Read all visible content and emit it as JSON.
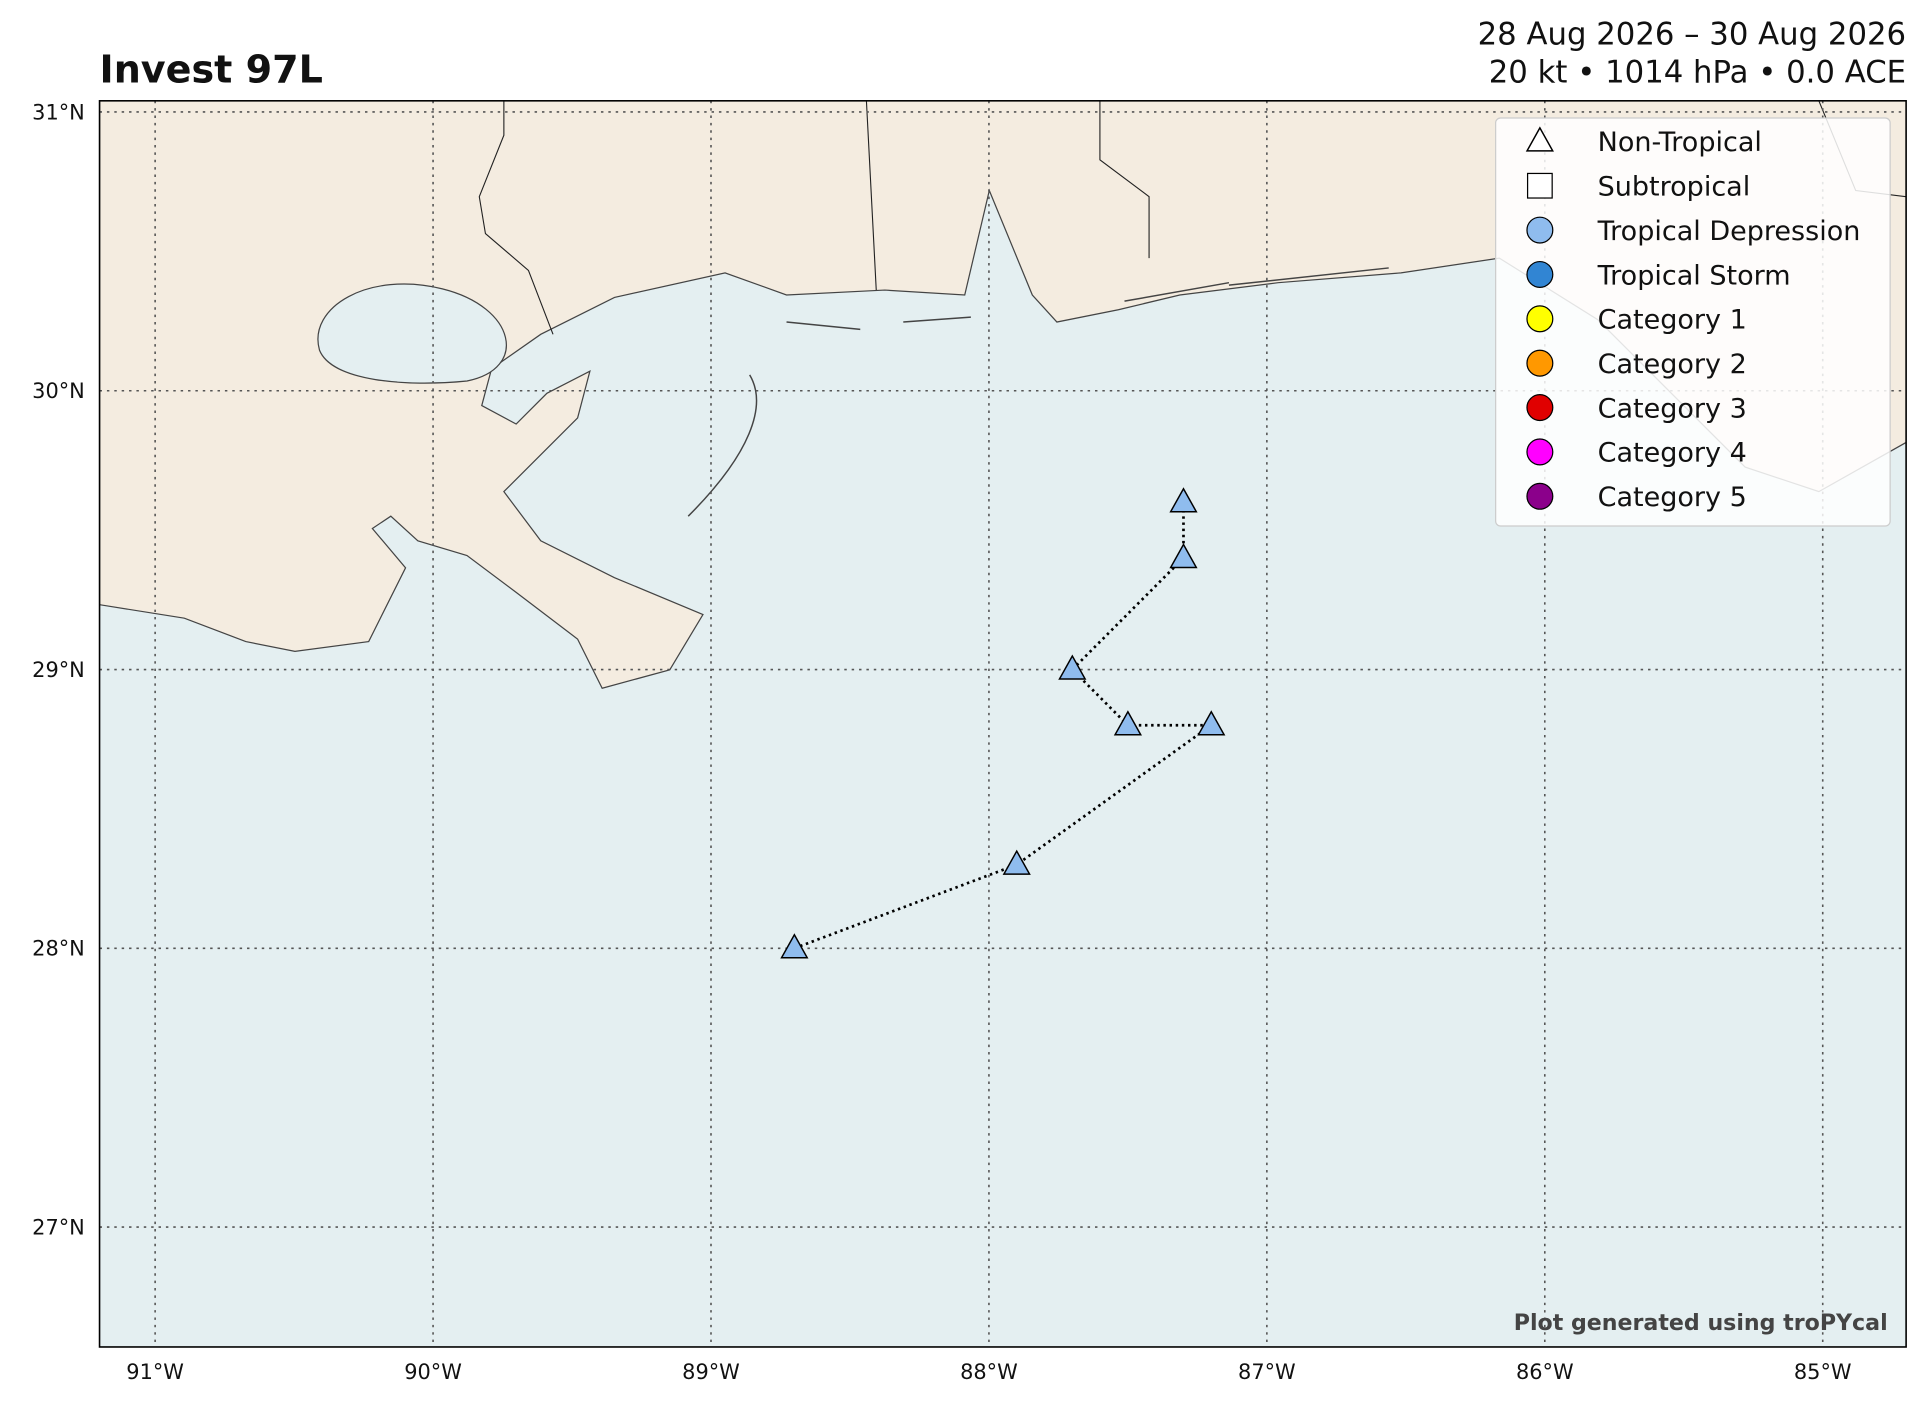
{
  "chart_data": {
    "type": "track",
    "title": "Invest 97L",
    "subtitle": [
      "28 Aug 2026 – 30 Aug 2026",
      "20 kt • 1014 hPa • 0.0 ACE"
    ],
    "credit": "Plot generated using troPYcal",
    "xlim": [
      -91.2,
      -84.7
    ],
    "ylim": [
      26.57,
      31.04
    ],
    "xticks": [
      {
        "value": -91,
        "label": "91°W"
      },
      {
        "value": -90,
        "label": "90°W"
      },
      {
        "value": -89,
        "label": "89°W"
      },
      {
        "value": -88,
        "label": "88°W"
      },
      {
        "value": -87,
        "label": "87°W"
      },
      {
        "value": -86,
        "label": "86°W"
      },
      {
        "value": -85,
        "label": "85°W"
      }
    ],
    "yticks": [
      {
        "value": 27,
        "label": "27°N"
      },
      {
        "value": 28,
        "label": "28°N"
      },
      {
        "value": 29,
        "label": "29°N"
      },
      {
        "value": 30,
        "label": "30°N"
      },
      {
        "value": 31,
        "label": "31°N"
      }
    ],
    "grid": true,
    "track": {
      "x": [
        -88.7,
        -87.9,
        -87.2,
        -87.5,
        -87.7,
        -87.3,
        -87.3
      ],
      "y": [
        28.0,
        28.3,
        28.8,
        28.8,
        29.0,
        29.4,
        29.6
      ],
      "marker": "triangle",
      "color": "#8fbcee"
    },
    "legend": {
      "position": "upper right",
      "entries": [
        {
          "label": "Non-Tropical",
          "marker": "triangle",
          "color": "#ffffff"
        },
        {
          "label": "Subtropical",
          "marker": "square",
          "color": "#ffffff"
        },
        {
          "label": "Tropical Depression",
          "marker": "circle",
          "color": "#8fbcee"
        },
        {
          "label": "Tropical Storm",
          "marker": "circle",
          "color": "#3185d3"
        },
        {
          "label": "Category 1",
          "marker": "circle",
          "color": "#ffff00"
        },
        {
          "label": "Category 2",
          "marker": "circle",
          "color": "#ff9800"
        },
        {
          "label": "Category 3",
          "marker": "circle",
          "color": "#e00000"
        },
        {
          "label": "Category 4",
          "marker": "circle",
          "color": "#ff00ff"
        },
        {
          "label": "Category 5",
          "marker": "circle",
          "color": "#8b008b"
        }
      ]
    }
  }
}
